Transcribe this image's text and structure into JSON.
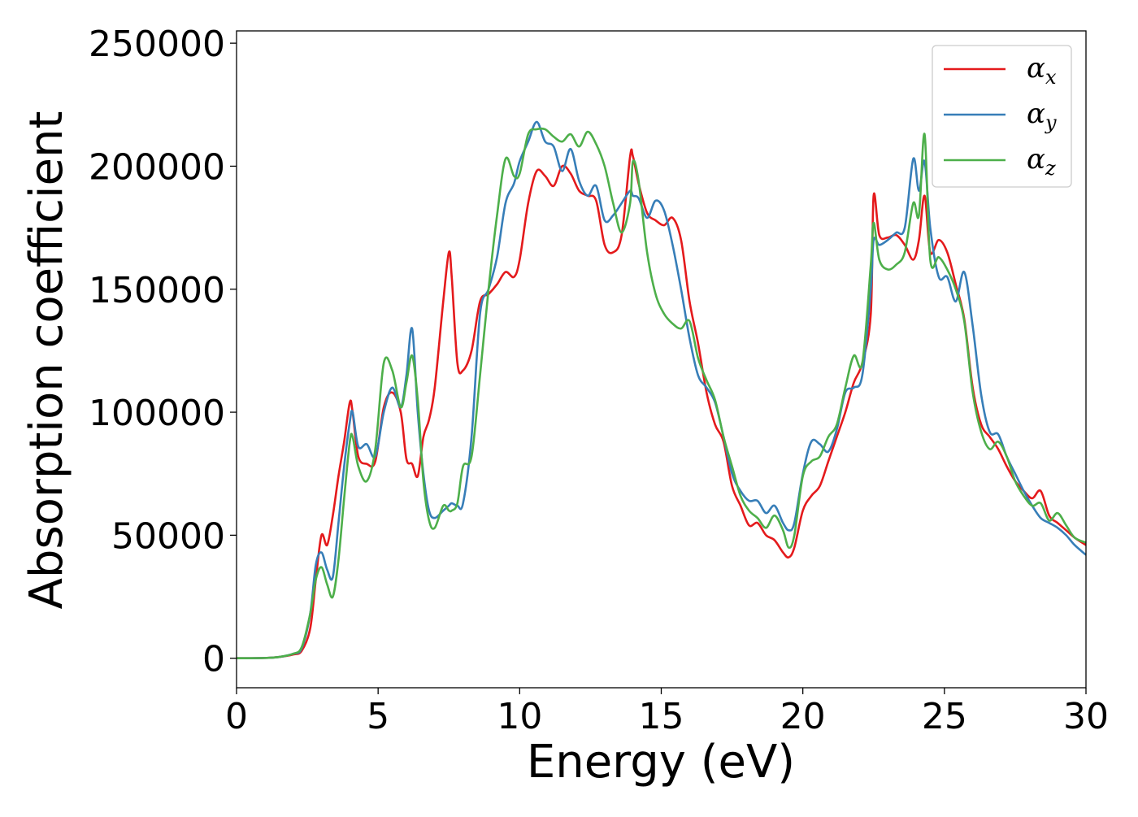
{
  "chart_data": {
    "type": "line",
    "title": "",
    "xlabel": "Energy (eV)",
    "ylabel": "Absorption coefficient",
    "xlim": [
      0,
      30
    ],
    "ylim": [
      -12000,
      255000
    ],
    "xticks": [
      0,
      5,
      10,
      15,
      20,
      25,
      30
    ],
    "xtick_labels": [
      "0",
      "5",
      "10",
      "15",
      "20",
      "25",
      "30"
    ],
    "yticks": [
      0,
      50000,
      100000,
      150000,
      200000,
      250000
    ],
    "ytick_labels": [
      "0",
      "50000",
      "100000",
      "150000",
      "200000",
      "250000"
    ],
    "grid": false,
    "legend_position": "top-right",
    "series": [
      {
        "name": "α_x",
        "symbol": "α",
        "subscript": "x",
        "color": "#e41a1c",
        "x": [
          0,
          1,
          1.5,
          2,
          2.3,
          2.6,
          2.8,
          3.0,
          3.2,
          3.4,
          3.6,
          3.8,
          4.0,
          4.1,
          4.3,
          4.6,
          4.9,
          5.2,
          5.5,
          5.8,
          6.0,
          6.2,
          6.4,
          6.6,
          6.8,
          7.0,
          7.3,
          7.5,
          7.6,
          7.8,
          8.0,
          8.3,
          8.6,
          8.9,
          9.2,
          9.5,
          9.8,
          10.0,
          10.3,
          10.6,
          10.9,
          11.2,
          11.5,
          11.8,
          12.1,
          12.4,
          12.7,
          13.0,
          13.3,
          13.6,
          13.9,
          14.0,
          14.2,
          14.5,
          14.8,
          15.1,
          15.4,
          15.7,
          16.0,
          16.3,
          16.6,
          16.9,
          17.2,
          17.5,
          17.8,
          18.1,
          18.4,
          18.7,
          19.0,
          19.3,
          19.5,
          19.7,
          20.0,
          20.3,
          20.6,
          20.9,
          21.2,
          21.5,
          21.8,
          22.1,
          22.4,
          22.5,
          22.7,
          23.0,
          23.3,
          23.6,
          23.9,
          24.1,
          24.3,
          24.5,
          24.8,
          25.1,
          25.4,
          25.7,
          26.0,
          26.3,
          26.6,
          26.9,
          27.2,
          27.5,
          27.8,
          28.1,
          28.4,
          28.7,
          29.0,
          29.3,
          29.6,
          30.0
        ],
        "values": [
          0,
          100,
          500,
          1500,
          3000,
          12000,
          32000,
          50000,
          46000,
          58000,
          74000,
          88000,
          104000,
          100000,
          82000,
          79000,
          80000,
          102000,
          108000,
          100000,
          81000,
          79000,
          74000,
          90000,
          97000,
          110000,
          145000,
          165000,
          155000,
          120000,
          117000,
          125000,
          145000,
          148000,
          152000,
          157000,
          155000,
          162000,
          185000,
          198000,
          196000,
          192000,
          200000,
          197000,
          190000,
          188000,
          186000,
          168000,
          165000,
          172000,
          204000,
          204000,
          193000,
          181000,
          178000,
          176000,
          179000,
          170000,
          145000,
          128000,
          108000,
          95000,
          88000,
          70000,
          62000,
          54000,
          55000,
          50000,
          48000,
          43000,
          41000,
          45000,
          60000,
          66000,
          70000,
          80000,
          90000,
          100000,
          112000,
          120000,
          140000,
          188000,
          172000,
          171000,
          172000,
          168000,
          162000,
          170000,
          188000,
          165000,
          170000,
          165000,
          152000,
          138000,
          110000,
          95000,
          90000,
          85000,
          78000,
          72000,
          68000,
          65000,
          68000,
          58000,
          55000,
          52000,
          49000,
          46000
        ]
      },
      {
        "name": "α_y",
        "symbol": "α",
        "subscript": "y",
        "color": "#377eb8",
        "x": [
          0,
          1,
          1.5,
          2,
          2.3,
          2.6,
          2.8,
          3.0,
          3.2,
          3.4,
          3.6,
          3.8,
          4.0,
          4.1,
          4.3,
          4.6,
          4.9,
          5.2,
          5.5,
          5.8,
          6.0,
          6.2,
          6.4,
          6.6,
          6.8,
          7.0,
          7.3,
          7.5,
          7.6,
          7.8,
          8.0,
          8.3,
          8.6,
          8.9,
          9.2,
          9.5,
          9.8,
          10.0,
          10.3,
          10.6,
          10.9,
          11.2,
          11.5,
          11.8,
          12.1,
          12.4,
          12.7,
          13.0,
          13.3,
          13.6,
          13.9,
          14.0,
          14.2,
          14.5,
          14.8,
          15.1,
          15.4,
          15.7,
          16.0,
          16.3,
          16.6,
          16.9,
          17.2,
          17.5,
          17.8,
          18.1,
          18.4,
          18.7,
          19.0,
          19.3,
          19.5,
          19.7,
          20.0,
          20.3,
          20.6,
          20.9,
          21.2,
          21.5,
          21.8,
          22.1,
          22.4,
          22.5,
          22.7,
          23.0,
          23.3,
          23.6,
          23.9,
          24.1,
          24.3,
          24.5,
          24.8,
          25.1,
          25.4,
          25.7,
          26.0,
          26.3,
          26.6,
          26.9,
          27.2,
          27.5,
          27.8,
          28.1,
          28.4,
          28.7,
          29.0,
          29.3,
          29.6,
          30.0
        ],
        "values": [
          0,
          100,
          500,
          1800,
          4000,
          18000,
          38000,
          43000,
          36000,
          33000,
          55000,
          78000,
          96000,
          100000,
          86000,
          87000,
          82000,
          100000,
          110000,
          102000,
          115000,
          134000,
          100000,
          75000,
          60000,
          57000,
          60000,
          62000,
          63000,
          62000,
          63000,
          90000,
          140000,
          150000,
          163000,
          185000,
          193000,
          202000,
          210000,
          218000,
          210000,
          208000,
          198000,
          207000,
          194000,
          188000,
          192000,
          178000,
          180000,
          185000,
          190000,
          188000,
          187000,
          179000,
          186000,
          182000,
          168000,
          150000,
          130000,
          115000,
          110000,
          104000,
          90000,
          75000,
          68000,
          64000,
          64000,
          59000,
          62000,
          55000,
          52000,
          55000,
          75000,
          88000,
          87000,
          84000,
          93000,
          108000,
          110000,
          115000,
          150000,
          170000,
          168000,
          170000,
          173000,
          175000,
          203000,
          190000,
          202000,
          175000,
          155000,
          155000,
          145000,
          157000,
          135000,
          107000,
          92000,
          91000,
          82000,
          75000,
          68000,
          62000,
          57000,
          55000,
          53000,
          50000,
          46000,
          42000
        ]
      },
      {
        "name": "α_z",
        "symbol": "α",
        "subscript": "z",
        "color": "#4daf4a",
        "x": [
          0,
          1,
          1.5,
          2,
          2.3,
          2.6,
          2.8,
          3.0,
          3.2,
          3.4,
          3.6,
          3.8,
          4.0,
          4.1,
          4.3,
          4.6,
          4.9,
          5.2,
          5.5,
          5.8,
          6.0,
          6.2,
          6.4,
          6.6,
          6.8,
          7.0,
          7.3,
          7.5,
          7.6,
          7.8,
          8.0,
          8.3,
          8.6,
          8.9,
          9.2,
          9.5,
          9.8,
          10.0,
          10.3,
          10.6,
          10.9,
          11.2,
          11.5,
          11.8,
          12.1,
          12.4,
          12.7,
          13.0,
          13.3,
          13.6,
          13.9,
          14.0,
          14.2,
          14.5,
          14.8,
          15.1,
          15.4,
          15.7,
          16.0,
          16.3,
          16.6,
          16.9,
          17.2,
          17.5,
          17.8,
          18.1,
          18.4,
          18.7,
          19.0,
          19.3,
          19.5,
          19.7,
          20.0,
          20.3,
          20.6,
          20.9,
          21.2,
          21.5,
          21.8,
          22.1,
          22.4,
          22.5,
          22.7,
          23.0,
          23.3,
          23.6,
          23.9,
          24.1,
          24.3,
          24.5,
          24.8,
          25.1,
          25.4,
          25.7,
          26.0,
          26.3,
          26.6,
          26.9,
          27.2,
          27.5,
          27.8,
          28.1,
          28.4,
          28.7,
          29.0,
          29.3,
          29.6,
          30.0
        ],
        "values": [
          0,
          100,
          500,
          1800,
          4500,
          18000,
          32000,
          37000,
          30000,
          25000,
          40000,
          65000,
          88000,
          90000,
          78000,
          72000,
          85000,
          120000,
          117000,
          102000,
          112000,
          123000,
          105000,
          72000,
          56000,
          53000,
          62000,
          60000,
          60000,
          63000,
          78000,
          82000,
          115000,
          150000,
          180000,
          203000,
          196000,
          197000,
          213000,
          215000,
          215000,
          212000,
          210000,
          213000,
          208000,
          214000,
          209000,
          200000,
          185000,
          173000,
          185000,
          202000,
          194000,
          165000,
          148000,
          140000,
          136000,
          134000,
          137000,
          122000,
          113000,
          105000,
          90000,
          78000,
          66000,
          60000,
          57000,
          53000,
          58000,
          52000,
          45000,
          50000,
          74000,
          80000,
          82000,
          90000,
          95000,
          110000,
          123000,
          120000,
          160000,
          177000,
          162000,
          158000,
          160000,
          165000,
          185000,
          180000,
          213000,
          162000,
          163000,
          158000,
          150000,
          137000,
          108000,
          92000,
          85000,
          88000,
          82000,
          72000,
          66000,
          62000,
          63000,
          56000,
          59000,
          54000,
          49000,
          47000
        ]
      }
    ]
  }
}
